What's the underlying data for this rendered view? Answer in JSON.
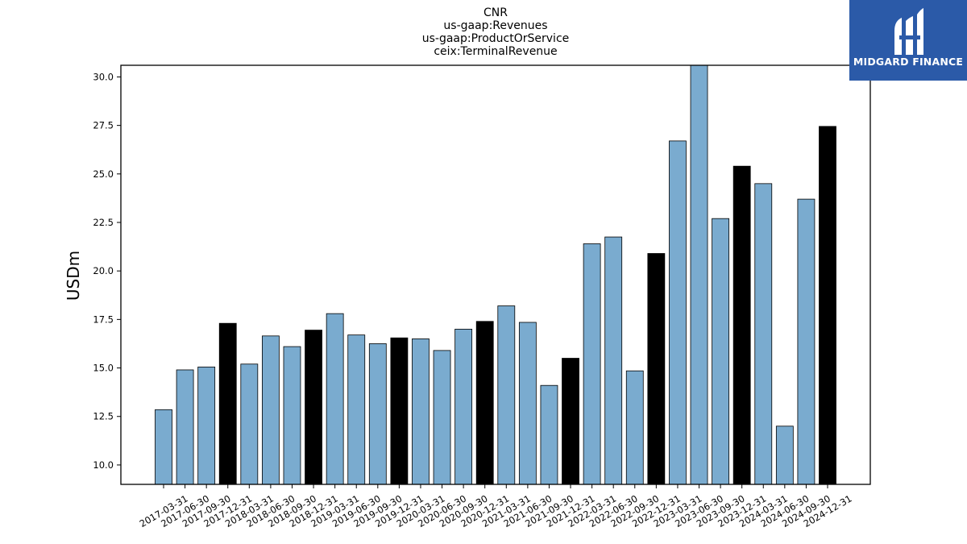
{
  "logo": {
    "text": "MIDGARD FINANCE",
    "icon": "midgard-logo-icon",
    "bg_color": "#2b5aa8"
  },
  "chart_data": {
    "type": "bar",
    "title_lines": [
      "CNR",
      "us-gaap:Revenues",
      "us-gaap:ProductOrService",
      "ceix:TerminalRevenue"
    ],
    "xlabel": "",
    "ylabel": "USDm",
    "ylim": [
      9.0,
      30.6
    ],
    "yticks": [
      10.0,
      12.5,
      15.0,
      17.5,
      20.0,
      22.5,
      25.0,
      27.5,
      30.0
    ],
    "ytick_labels": [
      "10.0",
      "12.5",
      "15.0",
      "17.5",
      "20.0",
      "22.5",
      "25.0",
      "27.5",
      "30.0"
    ],
    "grid": false,
    "legend": "none",
    "colors": {
      "quarter": "#7aabcf",
      "year_end": "#000000",
      "edge": "#000000"
    },
    "categories": [
      "2017-03-31",
      "2017-06-30",
      "2017-09-30",
      "2017-12-31",
      "2018-03-31",
      "2018-06-30",
      "2018-09-30",
      "2018-12-31",
      "2019-03-31",
      "2019-06-30",
      "2019-09-30",
      "2019-12-31",
      "2020-03-31",
      "2020-06-30",
      "2020-09-30",
      "2020-12-31",
      "2021-03-31",
      "2021-06-30",
      "2021-09-30",
      "2021-12-31",
      "2022-03-31",
      "2022-06-30",
      "2022-09-30",
      "2022-12-31",
      "2023-03-31",
      "2023-06-30",
      "2023-09-30",
      "2023-12-31",
      "2024-03-31",
      "2024-06-30",
      "2024-09-30",
      "2024-12-31"
    ],
    "values": [
      12.85,
      14.9,
      15.05,
      17.3,
      15.2,
      16.65,
      16.1,
      16.95,
      17.8,
      16.7,
      16.25,
      16.55,
      16.5,
      15.9,
      17.0,
      17.4,
      18.2,
      17.35,
      14.1,
      15.5,
      21.4,
      21.75,
      14.85,
      20.9,
      26.7,
      30.6,
      22.7,
      25.4,
      24.5,
      12.0,
      23.7,
      27.45
    ]
  }
}
